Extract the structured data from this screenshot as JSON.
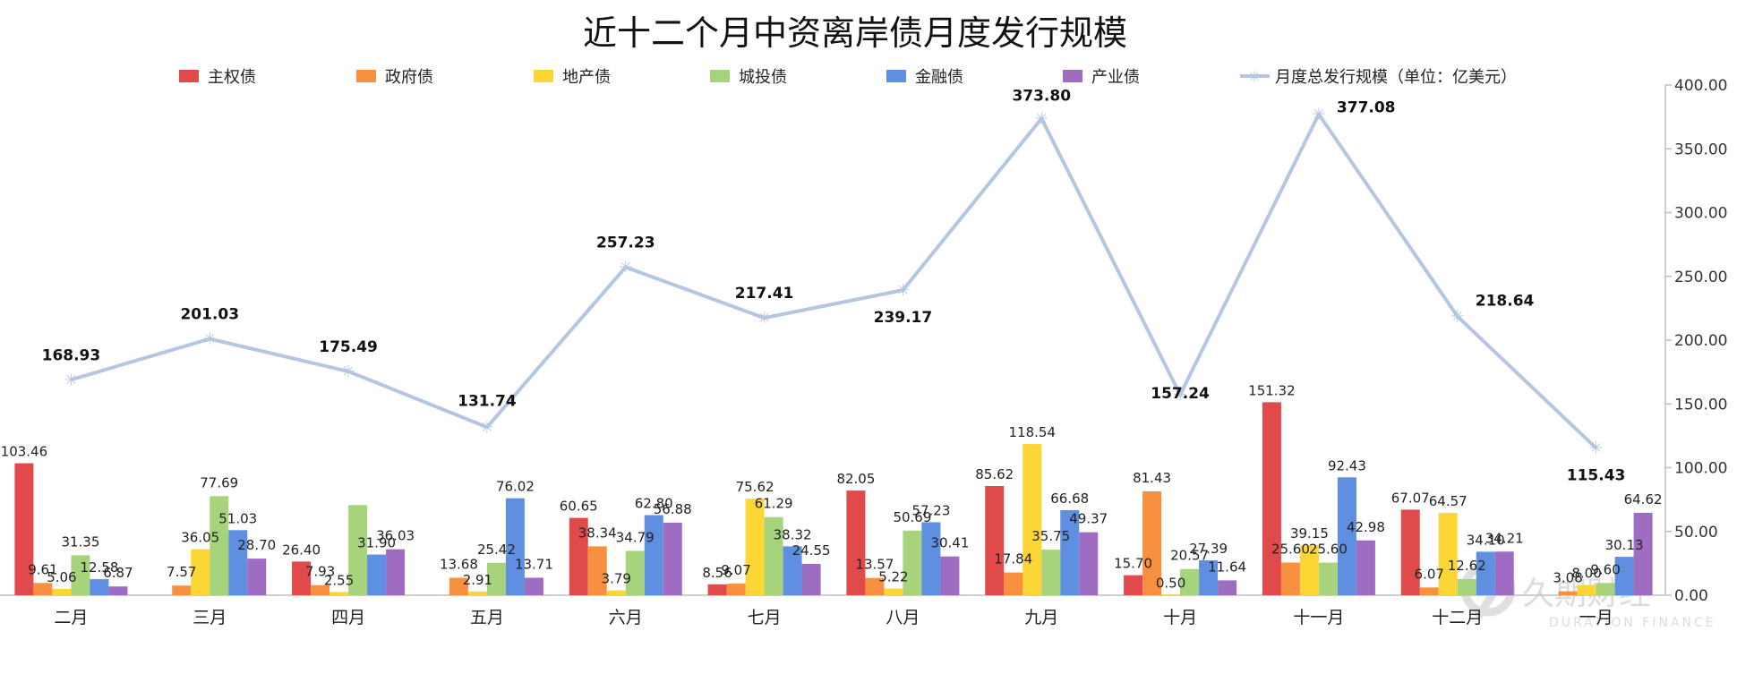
{
  "chart_data": {
    "type": "bar",
    "title": "近十二个月中资离岸债月度发行规模",
    "categories": [
      "二月",
      "三月",
      "四月",
      "五月",
      "六月",
      "七月",
      "八月",
      "九月",
      "十月",
      "十一月",
      "十二月",
      "一月"
    ],
    "series": [
      {
        "name": "主权债",
        "color": "#e04a4a",
        "values": [
          103.46,
          0,
          26.4,
          0,
          60.65,
          8.56,
          82.05,
          85.62,
          15.7,
          151.32,
          67.07,
          0
        ]
      },
      {
        "name": "政府债",
        "color": "#f7913f",
        "values": [
          9.61,
          7.57,
          7.93,
          13.68,
          38.34,
          9.07,
          13.57,
          17.84,
          81.43,
          25.6,
          6.07,
          3.08
        ]
      },
      {
        "name": "地产债",
        "color": "#fbd635",
        "values": [
          5.06,
          36.05,
          2.55,
          2.91,
          3.79,
          75.62,
          5.22,
          118.54,
          0.5,
          39.15,
          64.57,
          8.0
        ]
      },
      {
        "name": "城投债",
        "color": "#a6d37c",
        "values": [
          31.35,
          77.69,
          70.68,
          25.42,
          34.79,
          61.29,
          50.69,
          35.75,
          20.57,
          25.6,
          12.62,
          9.6
        ]
      },
      {
        "name": "金融债",
        "color": "#5e8fe0",
        "values": [
          12.58,
          51.03,
          31.9,
          76.02,
          62.8,
          38.32,
          57.23,
          66.68,
          27.39,
          92.43,
          34.1,
          30.13
        ]
      },
      {
        "name": "产业债",
        "color": "#9e6cc0",
        "values": [
          6.87,
          28.7,
          36.03,
          13.71,
          56.88,
          24.55,
          30.41,
          49.37,
          11.64,
          42.98,
          34.21,
          64.62
        ]
      }
    ],
    "bar_labels": [
      [
        "103.46",
        "9.61",
        "5.06",
        "31.35",
        "12.58",
        "6.87"
      ],
      [
        "",
        "7.57",
        "36.05",
        "77.69",
        "51.03",
        "28.70"
      ],
      [
        "26.40",
        "7.93",
        "2.55",
        "",
        "31.90",
        "36.03"
      ],
      [
        "",
        "13.68",
        "2.91",
        "25.42",
        "76.02",
        "13.71"
      ],
      [
        "60.65",
        "38.34",
        "3.79",
        "34.79",
        "62.80",
        "56.88"
      ],
      [
        "8.56",
        "9.07",
        "75.62",
        "61.29",
        "38.32",
        "24.55"
      ],
      [
        "82.05",
        "13.57",
        "5.22",
        "50.69",
        "57.23",
        "30.41"
      ],
      [
        "85.62",
        "17.84",
        "118.54",
        "35.75",
        "66.68",
        "49.37"
      ],
      [
        "15.70",
        "81.43",
        "0.50",
        "20.57",
        "27.39",
        "11.64"
      ],
      [
        "151.32",
        "25.60",
        "39.15",
        "25.60",
        "92.43",
        "42.98"
      ],
      [
        "67.07",
        "6.07",
        "64.57",
        "12.62",
        "34.10",
        "34.21"
      ],
      [
        "",
        "3.08",
        "8.00",
        "9.60",
        "30.13",
        "64.62"
      ]
    ],
    "line": {
      "name": "月度总发行规模（单位：亿美元）",
      "color": "#b4c6e0",
      "values": [
        168.93,
        201.03,
        175.49,
        131.74,
        257.23,
        217.41,
        239.17,
        373.8,
        157.24,
        377.08,
        218.64,
        115.43
      ],
      "labels": [
        "168.93",
        "201.03",
        "175.49",
        "131.74",
        "257.23",
        "217.41",
        "239.17",
        "373.80",
        "157.24",
        "377.08",
        "218.64",
        "115.43"
      ]
    },
    "yaxis": {
      "side": "right",
      "ylim": [
        0,
        400
      ],
      "ticks": [
        0,
        50,
        100,
        150,
        200,
        250,
        300,
        350,
        400
      ],
      "tick_labels": [
        "0.00",
        "50.00",
        "100.00",
        "150.00",
        "200.00",
        "250.00",
        "300.00",
        "350.00",
        "400.00"
      ]
    },
    "legend_position": "top",
    "grid": false
  },
  "watermark": {
    "brand": "久期财经",
    "sub": "DURATION FINANCE"
  }
}
